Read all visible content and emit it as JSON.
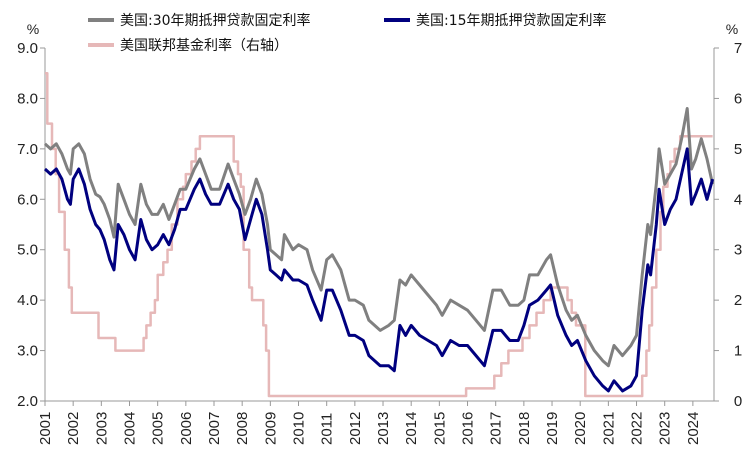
{
  "chart_data": {
    "type": "line",
    "left_unit": "%",
    "right_unit": "%",
    "y_left": {
      "min": 2.0,
      "max": 9.0,
      "ticks": [
        "2.0",
        "3.0",
        "4.0",
        "5.0",
        "6.0",
        "7.0",
        "8.0",
        "9.0"
      ]
    },
    "y_right": {
      "min": 0,
      "max": 7,
      "ticks": [
        "0",
        "1",
        "2",
        "3",
        "4",
        "5",
        "6",
        "7"
      ]
    },
    "x_ticks": [
      "2001",
      "2002",
      "2003",
      "2004",
      "2005",
      "2006",
      "2007",
      "2008",
      "2009",
      "2010",
      "2011",
      "2012",
      "2013",
      "2014",
      "2015",
      "2016",
      "2017",
      "2018",
      "2019",
      "2020",
      "2021",
      "2022",
      "2023",
      "2024"
    ],
    "x_range": [
      2001.0,
      2024.75
    ],
    "colors": {
      "mortgage30": "#808080",
      "mortgage15": "#00007f",
      "fedfunds": "#e6b8b8",
      "axis": "#999999"
    },
    "series": [
      {
        "name": "美国:30年期抵押贷款固定利率",
        "axis": "left",
        "points": [
          [
            2001.0,
            7.1
          ],
          [
            2001.2,
            7.0
          ],
          [
            2001.4,
            7.1
          ],
          [
            2001.6,
            6.9
          ],
          [
            2001.8,
            6.6
          ],
          [
            2001.9,
            6.5
          ],
          [
            2002.0,
            7.0
          ],
          [
            2002.2,
            7.1
          ],
          [
            2002.4,
            6.9
          ],
          [
            2002.6,
            6.4
          ],
          [
            2002.8,
            6.1
          ],
          [
            2002.95,
            6.05
          ],
          [
            2003.1,
            5.9
          ],
          [
            2003.3,
            5.6
          ],
          [
            2003.45,
            5.25
          ],
          [
            2003.6,
            6.3
          ],
          [
            2003.8,
            6.0
          ],
          [
            2004.0,
            5.7
          ],
          [
            2004.2,
            5.5
          ],
          [
            2004.4,
            6.3
          ],
          [
            2004.6,
            5.9
          ],
          [
            2004.8,
            5.7
          ],
          [
            2005.0,
            5.7
          ],
          [
            2005.2,
            5.9
          ],
          [
            2005.4,
            5.6
          ],
          [
            2005.6,
            5.9
          ],
          [
            2005.8,
            6.2
          ],
          [
            2006.0,
            6.2
          ],
          [
            2006.3,
            6.6
          ],
          [
            2006.5,
            6.8
          ],
          [
            2006.7,
            6.5
          ],
          [
            2006.9,
            6.2
          ],
          [
            2007.2,
            6.2
          ],
          [
            2007.5,
            6.7
          ],
          [
            2007.7,
            6.4
          ],
          [
            2007.9,
            6.1
          ],
          [
            2008.1,
            5.7
          ],
          [
            2008.3,
            6.0
          ],
          [
            2008.5,
            6.4
          ],
          [
            2008.7,
            6.1
          ],
          [
            2008.9,
            5.5
          ],
          [
            2009.0,
            5.0
          ],
          [
            2009.2,
            4.9
          ],
          [
            2009.4,
            4.8
          ],
          [
            2009.5,
            5.3
          ],
          [
            2009.8,
            5.0
          ],
          [
            2010.0,
            5.1
          ],
          [
            2010.3,
            5.0
          ],
          [
            2010.5,
            4.6
          ],
          [
            2010.8,
            4.2
          ],
          [
            2011.0,
            4.8
          ],
          [
            2011.2,
            4.9
          ],
          [
            2011.5,
            4.6
          ],
          [
            2011.8,
            4.0
          ],
          [
            2012.0,
            4.0
          ],
          [
            2012.3,
            3.9
          ],
          [
            2012.5,
            3.6
          ],
          [
            2012.9,
            3.4
          ],
          [
            2013.2,
            3.5
          ],
          [
            2013.4,
            3.6
          ],
          [
            2013.6,
            4.4
          ],
          [
            2013.8,
            4.3
          ],
          [
            2014.0,
            4.5
          ],
          [
            2014.3,
            4.3
          ],
          [
            2014.6,
            4.1
          ],
          [
            2014.9,
            3.9
          ],
          [
            2015.1,
            3.7
          ],
          [
            2015.4,
            4.0
          ],
          [
            2015.7,
            3.9
          ],
          [
            2016.0,
            3.8
          ],
          [
            2016.3,
            3.6
          ],
          [
            2016.6,
            3.4
          ],
          [
            2016.9,
            4.2
          ],
          [
            2017.2,
            4.2
          ],
          [
            2017.5,
            3.9
          ],
          [
            2017.8,
            3.9
          ],
          [
            2018.0,
            4.0
          ],
          [
            2018.2,
            4.5
          ],
          [
            2018.5,
            4.5
          ],
          [
            2018.8,
            4.8
          ],
          [
            2018.95,
            4.9
          ],
          [
            2019.2,
            4.3
          ],
          [
            2019.5,
            3.8
          ],
          [
            2019.7,
            3.6
          ],
          [
            2019.9,
            3.7
          ],
          [
            2020.2,
            3.3
          ],
          [
            2020.5,
            3.0
          ],
          [
            2020.8,
            2.8
          ],
          [
            2021.0,
            2.7
          ],
          [
            2021.2,
            3.1
          ],
          [
            2021.5,
            2.9
          ],
          [
            2021.8,
            3.1
          ],
          [
            2022.0,
            3.3
          ],
          [
            2022.2,
            4.5
          ],
          [
            2022.4,
            5.5
          ],
          [
            2022.5,
            5.3
          ],
          [
            2022.7,
            6.3
          ],
          [
            2022.8,
            7.0
          ],
          [
            2023.0,
            6.3
          ],
          [
            2023.2,
            6.5
          ],
          [
            2023.4,
            6.7
          ],
          [
            2023.6,
            7.2
          ],
          [
            2023.8,
            7.8
          ],
          [
            2023.95,
            6.6
          ],
          [
            2024.1,
            6.8
          ],
          [
            2024.3,
            7.2
          ],
          [
            2024.5,
            6.8
          ],
          [
            2024.7,
            6.3
          ]
        ]
      },
      {
        "name": "美国:15年期抵押贷款固定利率",
        "axis": "left",
        "points": [
          [
            2001.0,
            6.6
          ],
          [
            2001.2,
            6.5
          ],
          [
            2001.4,
            6.6
          ],
          [
            2001.6,
            6.4
          ],
          [
            2001.8,
            6.0
          ],
          [
            2001.9,
            5.9
          ],
          [
            2002.0,
            6.4
          ],
          [
            2002.2,
            6.6
          ],
          [
            2002.4,
            6.3
          ],
          [
            2002.6,
            5.8
          ],
          [
            2002.8,
            5.5
          ],
          [
            2002.95,
            5.4
          ],
          [
            2003.1,
            5.2
          ],
          [
            2003.3,
            4.8
          ],
          [
            2003.45,
            4.6
          ],
          [
            2003.6,
            5.5
          ],
          [
            2003.8,
            5.3
          ],
          [
            2004.0,
            5.0
          ],
          [
            2004.2,
            4.8
          ],
          [
            2004.4,
            5.6
          ],
          [
            2004.6,
            5.2
          ],
          [
            2004.8,
            5.0
          ],
          [
            2005.0,
            5.1
          ],
          [
            2005.2,
            5.3
          ],
          [
            2005.4,
            5.1
          ],
          [
            2005.6,
            5.4
          ],
          [
            2005.8,
            5.8
          ],
          [
            2006.0,
            5.8
          ],
          [
            2006.3,
            6.2
          ],
          [
            2006.5,
            6.4
          ],
          [
            2006.7,
            6.1
          ],
          [
            2006.9,
            5.9
          ],
          [
            2007.2,
            5.9
          ],
          [
            2007.5,
            6.3
          ],
          [
            2007.7,
            6.0
          ],
          [
            2007.9,
            5.8
          ],
          [
            2008.1,
            5.2
          ],
          [
            2008.3,
            5.6
          ],
          [
            2008.5,
            6.0
          ],
          [
            2008.7,
            5.7
          ],
          [
            2008.9,
            5.0
          ],
          [
            2009.0,
            4.6
          ],
          [
            2009.2,
            4.5
          ],
          [
            2009.4,
            4.4
          ],
          [
            2009.5,
            4.6
          ],
          [
            2009.8,
            4.4
          ],
          [
            2010.0,
            4.4
          ],
          [
            2010.3,
            4.3
          ],
          [
            2010.5,
            4.0
          ],
          [
            2010.8,
            3.6
          ],
          [
            2011.0,
            4.2
          ],
          [
            2011.2,
            4.2
          ],
          [
            2011.5,
            3.8
          ],
          [
            2011.8,
            3.3
          ],
          [
            2012.0,
            3.3
          ],
          [
            2012.3,
            3.2
          ],
          [
            2012.5,
            2.9
          ],
          [
            2012.9,
            2.7
          ],
          [
            2013.2,
            2.7
          ],
          [
            2013.4,
            2.6
          ],
          [
            2013.6,
            3.5
          ],
          [
            2013.8,
            3.3
          ],
          [
            2014.0,
            3.5
          ],
          [
            2014.3,
            3.3
          ],
          [
            2014.6,
            3.2
          ],
          [
            2014.9,
            3.1
          ],
          [
            2015.1,
            2.9
          ],
          [
            2015.4,
            3.2
          ],
          [
            2015.7,
            3.1
          ],
          [
            2016.0,
            3.1
          ],
          [
            2016.3,
            2.9
          ],
          [
            2016.6,
            2.7
          ],
          [
            2016.9,
            3.4
          ],
          [
            2017.2,
            3.4
          ],
          [
            2017.5,
            3.2
          ],
          [
            2017.8,
            3.2
          ],
          [
            2018.0,
            3.5
          ],
          [
            2018.2,
            3.9
          ],
          [
            2018.5,
            4.0
          ],
          [
            2018.8,
            4.2
          ],
          [
            2018.95,
            4.3
          ],
          [
            2019.2,
            3.7
          ],
          [
            2019.5,
            3.3
          ],
          [
            2019.7,
            3.1
          ],
          [
            2019.9,
            3.2
          ],
          [
            2020.2,
            2.8
          ],
          [
            2020.5,
            2.5
          ],
          [
            2020.8,
            2.3
          ],
          [
            2021.0,
            2.2
          ],
          [
            2021.2,
            2.4
          ],
          [
            2021.5,
            2.2
          ],
          [
            2021.8,
            2.3
          ],
          [
            2022.0,
            2.5
          ],
          [
            2022.2,
            3.8
          ],
          [
            2022.4,
            4.7
          ],
          [
            2022.5,
            4.5
          ],
          [
            2022.7,
            5.5
          ],
          [
            2022.8,
            6.2
          ],
          [
            2023.0,
            5.5
          ],
          [
            2023.2,
            5.8
          ],
          [
            2023.4,
            6.0
          ],
          [
            2023.6,
            6.5
          ],
          [
            2023.8,
            7.0
          ],
          [
            2023.95,
            5.9
          ],
          [
            2024.1,
            6.1
          ],
          [
            2024.3,
            6.4
          ],
          [
            2024.5,
            6.0
          ],
          [
            2024.7,
            6.4
          ]
        ]
      },
      {
        "name": "美国联邦基金利率（右轴）",
        "axis": "right",
        "step": true,
        "points": [
          [
            2001.0,
            6.5
          ],
          [
            2001.08,
            5.5
          ],
          [
            2001.25,
            5.0
          ],
          [
            2001.38,
            4.5
          ],
          [
            2001.5,
            3.75
          ],
          [
            2001.7,
            3.0
          ],
          [
            2001.85,
            2.25
          ],
          [
            2001.95,
            1.75
          ],
          [
            2002.9,
            1.25
          ],
          [
            2003.5,
            1.0
          ],
          [
            2004.5,
            1.25
          ],
          [
            2004.6,
            1.5
          ],
          [
            2004.75,
            1.75
          ],
          [
            2004.9,
            2.0
          ],
          [
            2005.0,
            2.5
          ],
          [
            2005.2,
            2.75
          ],
          [
            2005.35,
            3.0
          ],
          [
            2005.5,
            3.5
          ],
          [
            2005.7,
            4.0
          ],
          [
            2005.9,
            4.25
          ],
          [
            2006.0,
            4.5
          ],
          [
            2006.2,
            4.75
          ],
          [
            2006.35,
            5.0
          ],
          [
            2006.5,
            5.25
          ],
          [
            2007.7,
            4.75
          ],
          [
            2007.85,
            4.5
          ],
          [
            2007.95,
            4.25
          ],
          [
            2008.05,
            3.0
          ],
          [
            2008.25,
            2.25
          ],
          [
            2008.35,
            2.0
          ],
          [
            2008.75,
            1.5
          ],
          [
            2008.85,
            1.0
          ],
          [
            2008.95,
            0.1
          ],
          [
            2015.95,
            0.25
          ],
          [
            2016.95,
            0.5
          ],
          [
            2017.2,
            0.75
          ],
          [
            2017.45,
            1.0
          ],
          [
            2017.95,
            1.25
          ],
          [
            2018.2,
            1.5
          ],
          [
            2018.45,
            1.75
          ],
          [
            2018.7,
            2.0
          ],
          [
            2018.95,
            2.25
          ],
          [
            2019.55,
            2.0
          ],
          [
            2019.7,
            1.75
          ],
          [
            2019.85,
            1.5
          ],
          [
            2020.18,
            0.1
          ],
          [
            2022.2,
            0.5
          ],
          [
            2022.35,
            1.0
          ],
          [
            2022.45,
            1.5
          ],
          [
            2022.55,
            2.25
          ],
          [
            2022.7,
            3.0
          ],
          [
            2022.85,
            3.75
          ],
          [
            2022.95,
            4.25
          ],
          [
            2023.1,
            4.5
          ],
          [
            2023.2,
            4.75
          ],
          [
            2023.35,
            5.0
          ],
          [
            2023.55,
            5.25
          ],
          [
            2024.7,
            5.25
          ]
        ]
      }
    ]
  }
}
